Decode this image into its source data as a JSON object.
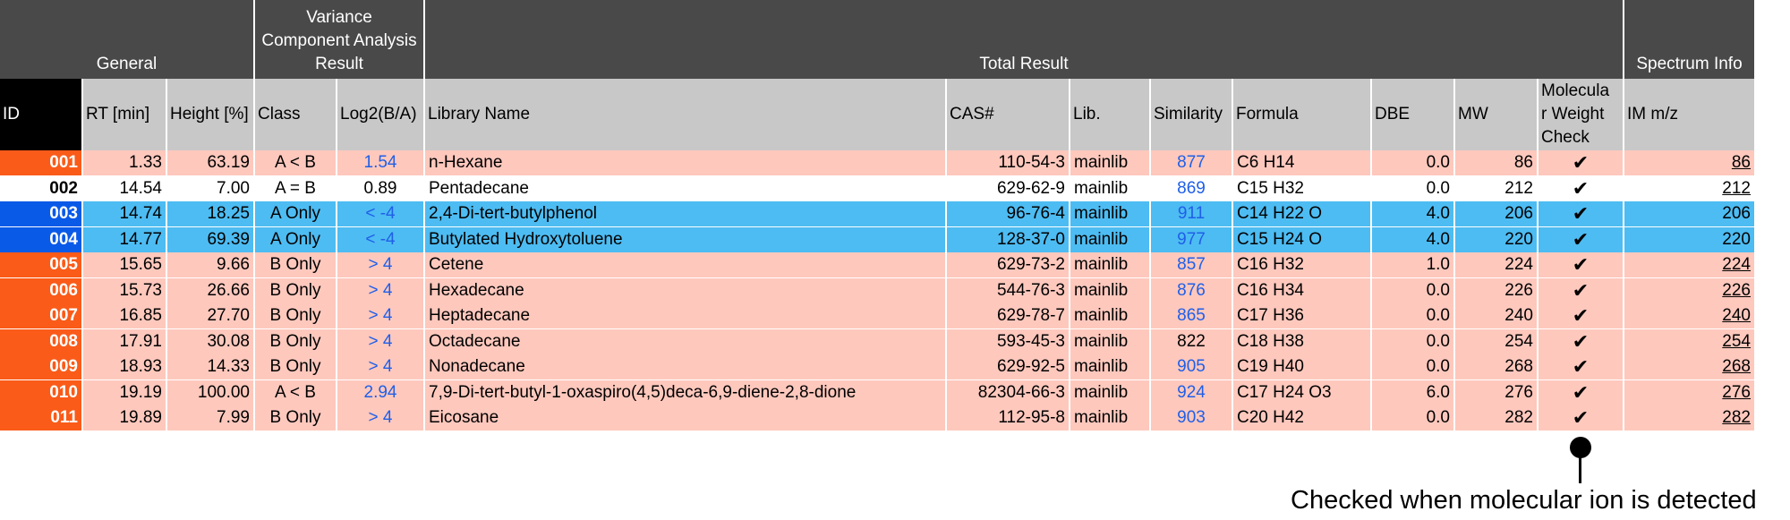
{
  "groups": {
    "general": "General",
    "variance": [
      "Variance",
      "Component Analysis",
      "Result"
    ],
    "total": "Total Result",
    "spectrum": "Spectrum Info"
  },
  "headers": {
    "id": "ID",
    "rt": "RT [min]",
    "height": "Height [%]",
    "class": "Class",
    "log2": "Log2(B/A)",
    "library_name": "Library Name",
    "cas": "CAS#",
    "lib": "Lib.",
    "similarity": "Similarity",
    "formula": "Formula",
    "dbe": "DBE",
    "mw": "MW",
    "mw_check": [
      "Molecula",
      "r Weight",
      "Check"
    ],
    "im": "IM m/z"
  },
  "colors": {
    "header_dark": "#494949",
    "header_light": "#c8c8c8",
    "row_pink": "#fec8bd",
    "row_blue": "#4dbcf2",
    "id_orange": "#fa5b19",
    "id_blue": "#0a5ae8",
    "id_black": "#000000",
    "link_blue": "#1f5fe8"
  },
  "check_glyph": "✔",
  "callout": "Checked when molecular ion is detected",
  "rows": [
    {
      "id": "001",
      "rt": "1.33",
      "height": "63.19",
      "class": "A < B",
      "log2": "1.54",
      "log2_blue": true,
      "name": "n-Hexane",
      "cas": "110-54-3",
      "lib": "mainlib",
      "sim": "877",
      "sim_blue": true,
      "formula": "C6 H14",
      "dbe": "0.0",
      "mw": "86",
      "im": "86",
      "im_underline": true,
      "style": "pink"
    },
    {
      "id": "002",
      "rt": "14.54",
      "height": "7.00",
      "class": "A = B",
      "log2": "0.89",
      "log2_blue": false,
      "name": "Pentadecane",
      "cas": "629-62-9",
      "lib": "mainlib",
      "sim": "869",
      "sim_blue": true,
      "formula": "C15 H32",
      "dbe": "0.0",
      "mw": "212",
      "im": "212",
      "im_underline": true,
      "style": "white"
    },
    {
      "id": "003",
      "rt": "14.74",
      "height": "18.25",
      "class": "A Only",
      "log2": "< -4",
      "log2_blue": true,
      "name": "2,4-Di-tert-butylphenol",
      "cas": "96-76-4",
      "lib": "mainlib",
      "sim": "911",
      "sim_blue": true,
      "formula": "C14 H22 O",
      "dbe": "4.0",
      "mw": "206",
      "im": "206",
      "im_underline": false,
      "style": "blue"
    },
    {
      "id": "004",
      "rt": "14.77",
      "height": "69.39",
      "class": "A Only",
      "log2": "< -4",
      "log2_blue": true,
      "name": "Butylated Hydroxytoluene",
      "cas": "128-37-0",
      "lib": "mainlib",
      "sim": "977",
      "sim_blue": true,
      "formula": "C15 H24 O",
      "dbe": "4.0",
      "mw": "220",
      "im": "220",
      "im_underline": false,
      "style": "blue"
    },
    {
      "id": "005",
      "rt": "15.65",
      "height": "9.66",
      "class": "B Only",
      "log2": "> 4",
      "log2_blue": true,
      "name": "Cetene",
      "cas": "629-73-2",
      "lib": "mainlib",
      "sim": "857",
      "sim_blue": true,
      "formula": "C16 H32",
      "dbe": "1.0",
      "mw": "224",
      "im": "224",
      "im_underline": true,
      "style": "pink"
    },
    {
      "id": "006",
      "rt": "15.73",
      "height": "26.66",
      "class": "B Only",
      "log2": "> 4",
      "log2_blue": true,
      "name": "Hexadecane",
      "cas": "544-76-3",
      "lib": "mainlib",
      "sim": "876",
      "sim_blue": true,
      "formula": "C16 H34",
      "dbe": "0.0",
      "mw": "226",
      "im": "226",
      "im_underline": true,
      "style": "pink"
    },
    {
      "id": "007",
      "rt": "16.85",
      "height": "27.70",
      "class": "B Only",
      "log2": "> 4",
      "log2_blue": true,
      "name": "Heptadecane",
      "cas": "629-78-7",
      "lib": "mainlib",
      "sim": "865",
      "sim_blue": true,
      "formula": "C17 H36",
      "dbe": "0.0",
      "mw": "240",
      "im": "240",
      "im_underline": true,
      "style": "pink"
    },
    {
      "id": "008",
      "rt": "17.91",
      "height": "30.08",
      "class": "B Only",
      "log2": "> 4",
      "log2_blue": true,
      "name": "Octadecane",
      "cas": "593-45-3",
      "lib": "mainlib",
      "sim": "822",
      "sim_blue": false,
      "formula": "C18 H38",
      "dbe": "0.0",
      "mw": "254",
      "im": "254",
      "im_underline": true,
      "style": "pink"
    },
    {
      "id": "009",
      "rt": "18.93",
      "height": "14.33",
      "class": "B Only",
      "log2": "> 4",
      "log2_blue": true,
      "name": "Nonadecane",
      "cas": "629-92-5",
      "lib": "mainlib",
      "sim": "905",
      "sim_blue": true,
      "formula": "C19 H40",
      "dbe": "0.0",
      "mw": "268",
      "im": "268",
      "im_underline": true,
      "style": "pink"
    },
    {
      "id": "010",
      "rt": "19.19",
      "height": "100.00",
      "class": "A < B",
      "log2": "2.94",
      "log2_blue": true,
      "name": "7,9-Di-tert-butyl-1-oxaspiro(4,5)deca-6,9-diene-2,8-dione",
      "cas": "82304-66-3",
      "lib": "mainlib",
      "sim": "924",
      "sim_blue": true,
      "formula": "C17 H24 O3",
      "dbe": "6.0",
      "mw": "276",
      "im": "276",
      "im_underline": true,
      "style": "pink"
    },
    {
      "id": "011",
      "rt": "19.89",
      "height": "7.99",
      "class": "B Only",
      "log2": "> 4",
      "log2_blue": true,
      "name": "Eicosane",
      "cas": "112-95-8",
      "lib": "mainlib",
      "sim": "903",
      "sim_blue": true,
      "formula": "C20 H42",
      "dbe": "0.0",
      "mw": "282",
      "im": "282",
      "im_underline": true,
      "style": "pink"
    }
  ]
}
